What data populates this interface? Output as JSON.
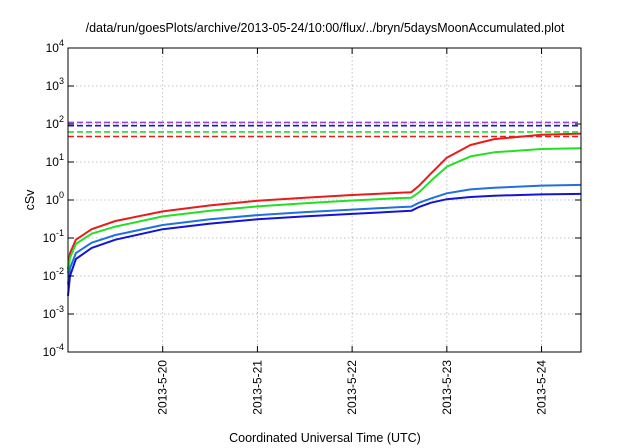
{
  "chart_data": {
    "type": "line",
    "title": "/data/run/goesPlots/archive/2013-05-24/10:00/flux/../bryn/5daysMoonAccumulated.plot",
    "xlabel": "Coordinated Universal Time (UTC)",
    "ylabel": "cSv",
    "yscale": "log",
    "ylim": [
      0.0001,
      10000
    ],
    "xlim": [
      "2013-05-19 00:00",
      "2013-05-24 10:00"
    ],
    "grid": true,
    "x_ticks": [
      "2013-5-20",
      "2013-5-21",
      "2013-5-22",
      "2013-5-23",
      "2013-5-24"
    ],
    "y_ticks": [
      {
        "base": "10",
        "exp": "-4",
        "value": 0.0001
      },
      {
        "base": "10",
        "exp": "-3",
        "value": 0.001
      },
      {
        "base": "10",
        "exp": "-2",
        "value": 0.01
      },
      {
        "base": "10",
        "exp": "-1",
        "value": 0.1
      },
      {
        "base": "10",
        "exp": "0",
        "value": 1
      },
      {
        "base": "10",
        "exp": "1",
        "value": 10
      },
      {
        "base": "10",
        "exp": "2",
        "value": 100
      },
      {
        "base": "10",
        "exp": "3",
        "value": 1000
      },
      {
        "base": "10",
        "exp": "4",
        "value": 10000
      }
    ],
    "series": [
      {
        "color": "#e81c1c",
        "style": "solid",
        "x": [
          "2013-05-19 00:00",
          "2013-05-19 00:30",
          "2013-05-19 02:00",
          "2013-05-19 06:00",
          "2013-05-19 12:00",
          "2013-05-20 00:00",
          "2013-05-20 12:00",
          "2013-05-21 00:00",
          "2013-05-21 12:00",
          "2013-05-22 00:00",
          "2013-05-22 12:00",
          "2013-05-22 15:00",
          "2013-05-22 17:00",
          "2013-05-22 20:00",
          "2013-05-23 00:00",
          "2013-05-23 06:00",
          "2013-05-23 12:00",
          "2013-05-24 00:00",
          "2013-05-24 10:00"
        ],
        "y": [
          0.015,
          0.04,
          0.09,
          0.17,
          0.28,
          0.5,
          0.72,
          0.95,
          1.15,
          1.35,
          1.55,
          1.6,
          2.4,
          5,
          13,
          28,
          40,
          52,
          56
        ]
      },
      {
        "color": "#22e022",
        "style": "solid",
        "x": [
          "2013-05-19 00:00",
          "2013-05-19 00:30",
          "2013-05-19 02:00",
          "2013-05-19 06:00",
          "2013-05-19 12:00",
          "2013-05-20 00:00",
          "2013-05-20 12:00",
          "2013-05-21 00:00",
          "2013-05-21 12:00",
          "2013-05-22 00:00",
          "2013-05-22 12:00",
          "2013-05-22 15:00",
          "2013-05-22 17:00",
          "2013-05-22 20:00",
          "2013-05-23 00:00",
          "2013-05-23 06:00",
          "2013-05-23 12:00",
          "2013-05-24 00:00",
          "2013-05-24 10:00"
        ],
        "y": [
          0.012,
          0.03,
          0.07,
          0.13,
          0.2,
          0.37,
          0.52,
          0.68,
          0.82,
          0.97,
          1.12,
          1.15,
          1.6,
          3.2,
          7.5,
          14,
          18,
          22,
          23
        ]
      },
      {
        "color": "#2070e0",
        "style": "solid",
        "x": [
          "2013-05-19 00:00",
          "2013-05-19 00:30",
          "2013-05-19 02:00",
          "2013-05-19 06:00",
          "2013-05-19 12:00",
          "2013-05-20 00:00",
          "2013-05-20 12:00",
          "2013-05-21 00:00",
          "2013-05-21 12:00",
          "2013-05-22 00:00",
          "2013-05-22 12:00",
          "2013-05-22 15:00",
          "2013-05-22 17:00",
          "2013-05-22 20:00",
          "2013-05-23 00:00",
          "2013-05-23 06:00",
          "2013-05-23 12:00",
          "2013-05-24 00:00",
          "2013-05-24 10:00"
        ],
        "y": [
          0.006,
          0.016,
          0.04,
          0.075,
          0.12,
          0.22,
          0.31,
          0.4,
          0.48,
          0.56,
          0.65,
          0.67,
          0.85,
          1.1,
          1.5,
          1.9,
          2.1,
          2.4,
          2.5
        ]
      },
      {
        "color": "#1414d8",
        "style": "solid",
        "x": [
          "2013-05-19 00:00",
          "2013-05-19 00:30",
          "2013-05-19 02:00",
          "2013-05-19 06:00",
          "2013-05-19 12:00",
          "2013-05-20 00:00",
          "2013-05-20 12:00",
          "2013-05-21 00:00",
          "2013-05-21 12:00",
          "2013-05-22 00:00",
          "2013-05-22 12:00",
          "2013-05-22 15:00",
          "2013-05-22 17:00",
          "2013-05-22 20:00",
          "2013-05-23 00:00",
          "2013-05-23 06:00",
          "2013-05-23 12:00",
          "2013-05-24 00:00",
          "2013-05-24 10:00"
        ],
        "y": [
          0.003,
          0.01,
          0.028,
          0.055,
          0.09,
          0.17,
          0.24,
          0.31,
          0.37,
          0.43,
          0.5,
          0.52,
          0.66,
          0.85,
          1.05,
          1.2,
          1.3,
          1.4,
          1.45
        ]
      },
      {
        "color": "#a040e0",
        "style": "dashed",
        "x": [
          "2013-05-19 00:00",
          "2013-05-24 10:00"
        ],
        "y": [
          110,
          110
        ]
      },
      {
        "color": "#1414d8",
        "style": "dashed",
        "x": [
          "2013-05-19 00:00",
          "2013-05-24 10:00"
        ],
        "y": [
          90,
          90
        ]
      },
      {
        "color": "#22e022",
        "style": "dashed",
        "x": [
          "2013-05-19 00:00",
          "2013-05-24 10:00"
        ],
        "y": [
          62,
          62
        ]
      },
      {
        "color": "#e81c1c",
        "style": "dashed",
        "x": [
          "2013-05-19 00:00",
          "2013-05-24 10:00"
        ],
        "y": [
          47,
          47
        ]
      }
    ]
  }
}
